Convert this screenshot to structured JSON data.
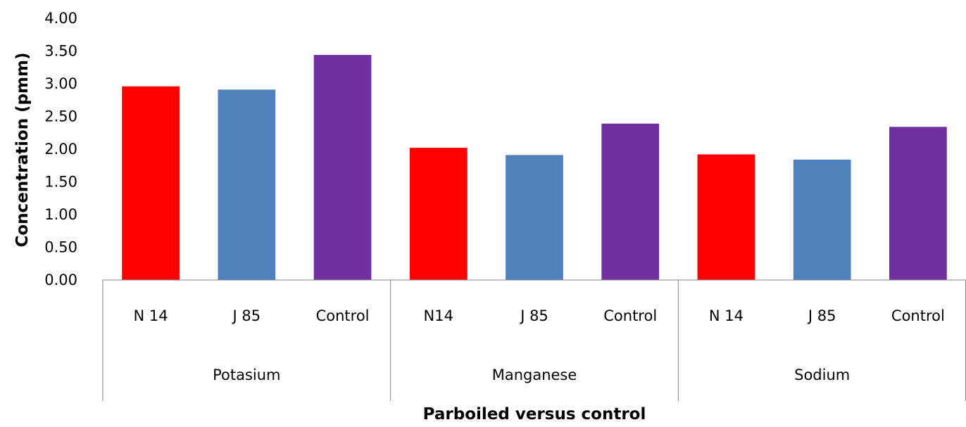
{
  "chart_data": {
    "type": "bar",
    "title": "",
    "ylabel": "Concentration (pmm)",
    "xlabel": "Parboiled versus control",
    "ylim": [
      0,
      4
    ],
    "yticks": [
      "0.00",
      "0.50",
      "1.00",
      "1.50",
      "2.00",
      "2.50",
      "3.00",
      "3.50",
      "4.00"
    ],
    "grid": false,
    "legend": "none",
    "groups": [
      {
        "name": "Potasium",
        "bars": [
          {
            "label": "N 14",
            "value": 2.96,
            "color": "#ff0000"
          },
          {
            "label": "J 85",
            "value": 2.91,
            "color": "#4f81bd"
          },
          {
            "label": "Control",
            "value": 3.44,
            "color": "#7030a0"
          }
        ]
      },
      {
        "name": "Manganese",
        "bars": [
          {
            "label": "N14",
            "value": 2.02,
            "color": "#ff0000"
          },
          {
            "label": "J 85",
            "value": 1.91,
            "color": "#4f81bd"
          },
          {
            "label": "Control",
            "value": 2.39,
            "color": "#7030a0"
          }
        ]
      },
      {
        "name": "Sodium",
        "bars": [
          {
            "label": "N 14",
            "value": 1.92,
            "color": "#ff0000"
          },
          {
            "label": "J 85",
            "value": 1.84,
            "color": "#4f81bd"
          },
          {
            "label": "Control",
            "value": 2.34,
            "color": "#7030a0"
          }
        ]
      }
    ]
  }
}
